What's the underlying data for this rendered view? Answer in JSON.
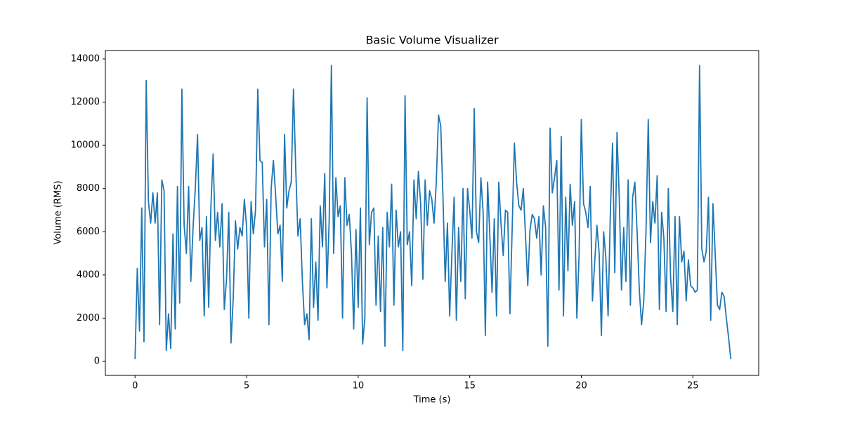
{
  "chart_data": {
    "type": "line",
    "title": "Basic Volume Visualizer",
    "x_label": "Time (s)",
    "y_label": "Volume (RMS)",
    "x": [
      0,
      0.1,
      0.2,
      0.3,
      0.4,
      0.5,
      0.6,
      0.7,
      0.8,
      0.9,
      1,
      1.1,
      1.2,
      1.3,
      1.4,
      1.5,
      1.6,
      1.7,
      1.8,
      1.9,
      2,
      2.1,
      2.2,
      2.3,
      2.4,
      2.5,
      2.6,
      2.7,
      2.8,
      2.9,
      3,
      3.1,
      3.2,
      3.3,
      3.4,
      3.5,
      3.6,
      3.7,
      3.8,
      3.9,
      4,
      4.1,
      4.2,
      4.3,
      4.4,
      4.5,
      4.6,
      4.7,
      4.8,
      4.9,
      5,
      5.1,
      5.2,
      5.3,
      5.4,
      5.5,
      5.6,
      5.7,
      5.8,
      5.9,
      6,
      6.1,
      6.2,
      6.3,
      6.4,
      6.5,
      6.6,
      6.7,
      6.8,
      6.9,
      7,
      7.1,
      7.2,
      7.3,
      7.4,
      7.5,
      7.6,
      7.7,
      7.8,
      7.9,
      8,
      8.1,
      8.2,
      8.3,
      8.4,
      8.5,
      8.6,
      8.7,
      8.8,
      8.9,
      9,
      9.1,
      9.2,
      9.3,
      9.4,
      9.5,
      9.6,
      9.7,
      9.8,
      9.9,
      10,
      10.1,
      10.2,
      10.3,
      10.4,
      10.5,
      10.6,
      10.7,
      10.8,
      10.9,
      11,
      11.1,
      11.2,
      11.3,
      11.4,
      11.5,
      11.6,
      11.7,
      11.8,
      11.9,
      12,
      12.1,
      12.2,
      12.3,
      12.4,
      12.5,
      12.6,
      12.7,
      12.8,
      12.9,
      13,
      13.1,
      13.2,
      13.3,
      13.4,
      13.5,
      13.6,
      13.7,
      13.8,
      13.9,
      14,
      14.1,
      14.2,
      14.3,
      14.4,
      14.5,
      14.6,
      14.7,
      14.8,
      14.9,
      15,
      15.1,
      15.2,
      15.3,
      15.4,
      15.5,
      15.6,
      15.7,
      15.8,
      15.9,
      16,
      16.1,
      16.2,
      16.3,
      16.4,
      16.5,
      16.6,
      16.7,
      16.8,
      16.9,
      17,
      17.1,
      17.2,
      17.3,
      17.4,
      17.5,
      17.6,
      17.7,
      17.8,
      17.9,
      18,
      18.1,
      18.2,
      18.3,
      18.4,
      18.5,
      18.6,
      18.7,
      18.8,
      18.9,
      19,
      19.1,
      19.2,
      19.3,
      19.4,
      19.5,
      19.6,
      19.7,
      19.8,
      19.9,
      20,
      20.1,
      20.2,
      20.3,
      20.4,
      20.5,
      20.6,
      20.7,
      20.8,
      20.9,
      21,
      21.1,
      21.2,
      21.3,
      21.4,
      21.5,
      21.6,
      21.7,
      21.8,
      21.9,
      22,
      22.1,
      22.2,
      22.3,
      22.4,
      22.5,
      22.6,
      22.7,
      22.8,
      22.9,
      23,
      23.1,
      23.2,
      23.3,
      23.4,
      23.5,
      23.6,
      23.7,
      23.8,
      23.9,
      24,
      24.1,
      24.2,
      24.3,
      24.4,
      24.5,
      24.6,
      24.7,
      24.8,
      24.9,
      25,
      25.1,
      25.2,
      25.3,
      25.4,
      25.5,
      25.6,
      25.7,
      25.8,
      25.9,
      26,
      26.1,
      26.2,
      26.3,
      26.4,
      26.5,
      26.6,
      26.7
    ],
    "series": [
      {
        "color": "#1f77b4",
        "values": [
          100,
          4300,
          1400,
          7100,
          900,
          13000,
          7400,
          6400,
          7800,
          6400,
          7800,
          1700,
          8400,
          7900,
          500,
          2200,
          600,
          5900,
          1500,
          8100,
          2700,
          12600,
          6300,
          5000,
          8100,
          3700,
          6200,
          8000,
          10500,
          5600,
          6200,
          2100,
          6700,
          2500,
          7200,
          9600,
          5600,
          6900,
          5300,
          7300,
          2400,
          3800,
          6900,
          850,
          2900,
          6500,
          5200,
          6200,
          5800,
          7500,
          6200,
          2000,
          7400,
          5900,
          7000,
          12600,
          9300,
          9200,
          5300,
          7500,
          1700,
          8000,
          9300,
          7700,
          5900,
          6300,
          3700,
          10500,
          7100,
          7900,
          8300,
          12600,
          9000,
          5800,
          6600,
          3700,
          1700,
          2200,
          1000,
          6600,
          2500,
          4600,
          1900,
          7200,
          5300,
          8700,
          3400,
          6500,
          13700,
          5000,
          8500,
          6700,
          7200,
          2000,
          8500,
          6300,
          6800,
          5000,
          1500,
          6100,
          2500,
          7100,
          800,
          2000,
          12200,
          5400,
          6900,
          7100,
          2600,
          5800,
          2300,
          6200,
          700,
          6900,
          5300,
          8200,
          2600,
          7000,
          5300,
          6000,
          500,
          12300,
          5400,
          6000,
          3500,
          8400,
          6600,
          8800,
          7300,
          3800,
          8400,
          6300,
          7900,
          7500,
          6400,
          8300,
          11400,
          10900,
          7600,
          3700,
          6400,
          2100,
          5000,
          7600,
          1900,
          6200,
          3700,
          8000,
          2900,
          8000,
          7000,
          5700,
          11700,
          6000,
          5500,
          8500,
          6900,
          1200,
          8300,
          5800,
          3200,
          6600,
          2100,
          8300,
          6400,
          4900,
          7000,
          6900,
          2200,
          6100,
          10100,
          8300,
          7200,
          7000,
          8000,
          5800,
          3500,
          6100,
          6800,
          6600,
          5700,
          6700,
          4000,
          7200,
          6200,
          700,
          10800,
          7800,
          8500,
          9300,
          3300,
          10400,
          2100,
          7600,
          4200,
          8200,
          6300,
          7400,
          2000,
          4900,
          11200,
          7300,
          6900,
          6200,
          8100,
          2800,
          4600,
          6300,
          5000,
          1200,
          6000,
          4800,
          2100,
          6800,
          10100,
          4100,
          10600,
          7600,
          3300,
          6200,
          3700,
          8400,
          2600,
          7600,
          8300,
          6000,
          3300,
          1700,
          2800,
          6100,
          11200,
          5500,
          7400,
          6400,
          8600,
          2400,
          6900,
          5700,
          2300,
          8000,
          3900,
          2300,
          6700,
          1700,
          6700,
          4600,
          5100,
          2800,
          4700,
          3500,
          3400,
          3200,
          3300,
          13700,
          5200,
          4600,
          5100,
          7600,
          1900,
          7300,
          5000,
          2600,
          2400,
          3200,
          3000,
          2000,
          1100,
          100
        ]
      }
    ],
    "xlim": [
      -1.33,
      27.95
    ],
    "ylim": [
      -650,
      14390
    ],
    "xticks": [
      0,
      5,
      10,
      15,
      20,
      25
    ],
    "yticks": [
      0,
      2000,
      4000,
      6000,
      8000,
      10000,
      12000,
      14000
    ]
  }
}
